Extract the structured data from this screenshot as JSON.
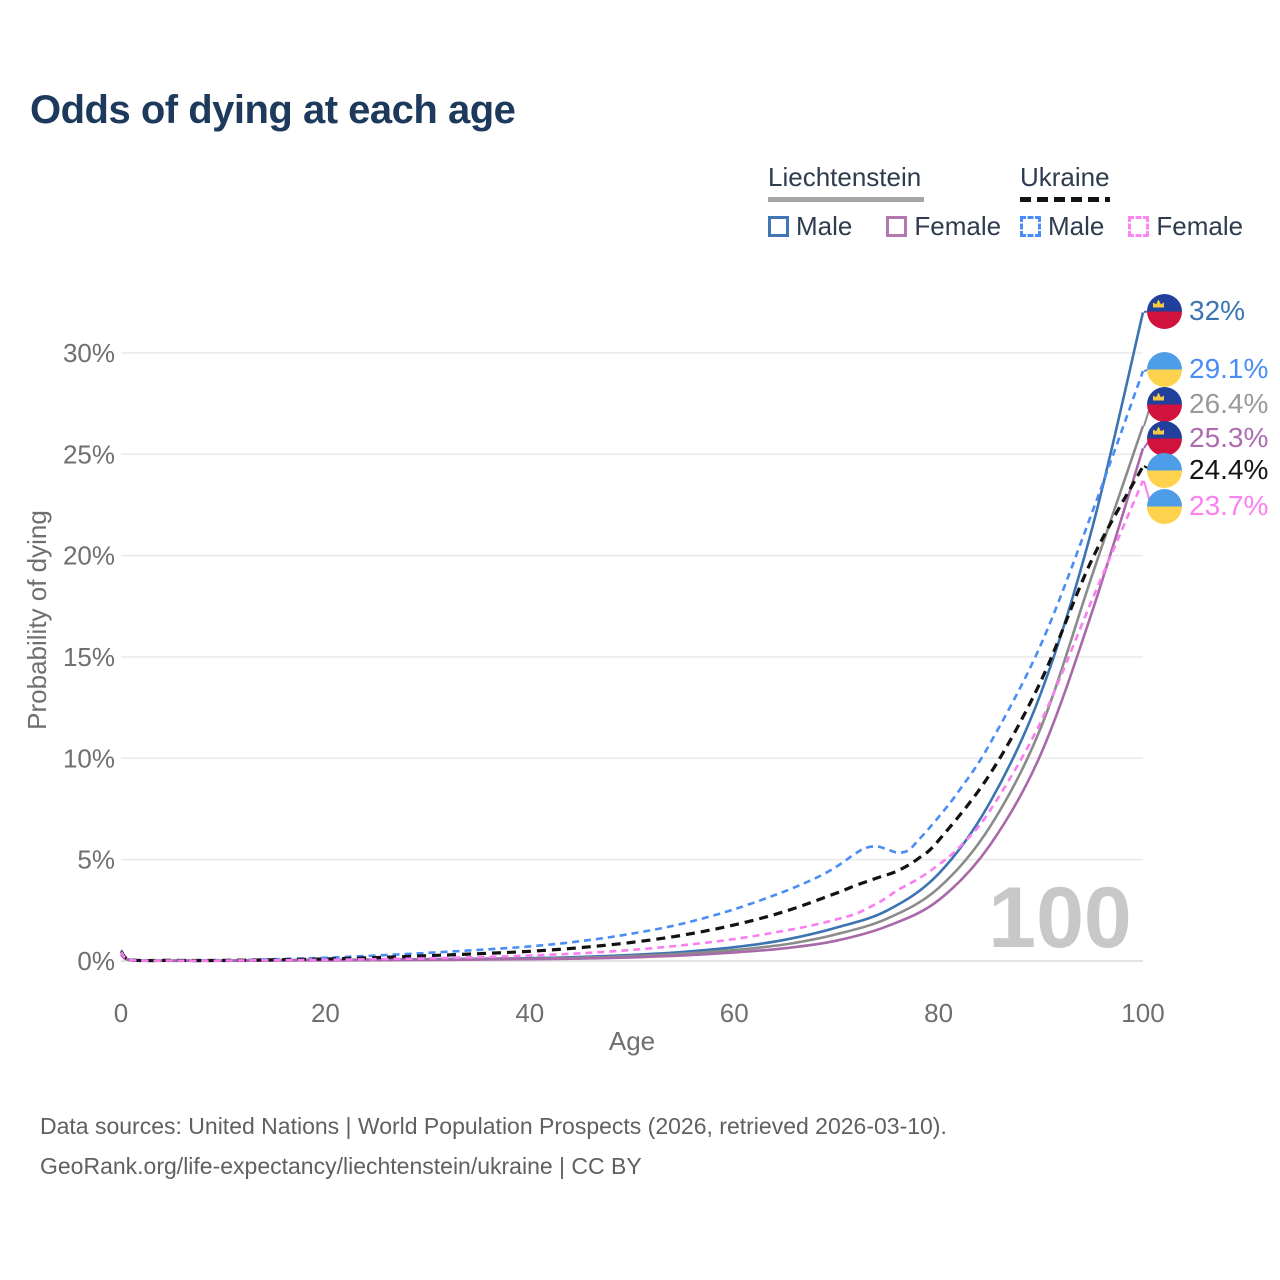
{
  "header": {
    "title": "Odds of dying at each age"
  },
  "legend": {
    "groups": [
      {
        "name": "Liechtenstein",
        "line_style": "solid",
        "underline_color": "#a6a6a6",
        "items": [
          {
            "label": "Male",
            "color": "#4076b4"
          },
          {
            "label": "Female",
            "color": "#b277ae"
          }
        ]
      },
      {
        "name": "Ukraine",
        "line_style": "dashed",
        "underline_color": "#141414",
        "items": [
          {
            "label": "Male",
            "color": "#4a8df5"
          },
          {
            "label": "Female",
            "color": "#fc87f2"
          }
        ]
      }
    ]
  },
  "chart_data": {
    "type": "line",
    "title": "Odds of dying at each age",
    "xlabel": "Age",
    "ylabel": "Probability of dying",
    "xlim": [
      0,
      100
    ],
    "ylim": [
      0,
      32
    ],
    "x_ticks": [
      0,
      20,
      40,
      60,
      80,
      100
    ],
    "y_ticks": [
      "0%",
      "5%",
      "10%",
      "15%",
      "20%",
      "25%",
      "30%"
    ],
    "grid": "horizontal-only",
    "legend_position": "top-right",
    "watermark": "100",
    "series": [
      {
        "name": "Liechtenstein — Male",
        "color": "#3c74b2",
        "dash": null,
        "width": 2.6,
        "end_label": "32%",
        "points": [
          [
            0,
            0.38
          ],
          [
            1,
            0.04
          ],
          [
            5,
            0.02
          ],
          [
            10,
            0.02
          ],
          [
            15,
            0.04
          ],
          [
            20,
            0.06
          ],
          [
            25,
            0.07
          ],
          [
            30,
            0.09
          ],
          [
            35,
            0.11
          ],
          [
            40,
            0.14
          ],
          [
            45,
            0.2
          ],
          [
            50,
            0.3
          ],
          [
            55,
            0.45
          ],
          [
            60,
            0.68
          ],
          [
            65,
            1.05
          ],
          [
            70,
            1.65
          ],
          [
            75,
            2.5
          ],
          [
            80,
            4.3
          ],
          [
            85,
            7.8
          ],
          [
            90,
            13.2
          ],
          [
            95,
            21.3
          ],
          [
            100,
            32
          ]
        ]
      },
      {
        "name": "Ukraine — Male",
        "color": "#4a8df5",
        "dash": "7 5",
        "width": 2.6,
        "end_label": "29.1%",
        "points": [
          [
            0,
            0.52
          ],
          [
            1,
            0.06
          ],
          [
            5,
            0.04
          ],
          [
            10,
            0.04
          ],
          [
            15,
            0.09
          ],
          [
            20,
            0.16
          ],
          [
            25,
            0.27
          ],
          [
            30,
            0.4
          ],
          [
            35,
            0.55
          ],
          [
            40,
            0.72
          ],
          [
            45,
            0.98
          ],
          [
            50,
            1.35
          ],
          [
            55,
            1.85
          ],
          [
            60,
            2.55
          ],
          [
            65,
            3.45
          ],
          [
            68,
            4.1
          ],
          [
            70,
            4.65
          ],
          [
            72,
            5.35
          ],
          [
            73,
            5.6
          ],
          [
            74,
            5.65
          ],
          [
            75,
            5.5
          ],
          [
            76,
            5.35
          ],
          [
            77,
            5.45
          ],
          [
            78,
            5.95
          ],
          [
            80,
            7.1
          ],
          [
            82,
            8.4
          ],
          [
            85,
            10.7
          ],
          [
            90,
            15.6
          ],
          [
            95,
            22.1
          ],
          [
            100,
            29.1
          ]
        ]
      },
      {
        "name": "Liechtenstein — Both sexes",
        "color": "#8b8b8b",
        "dash": null,
        "width": 2.6,
        "end_label": "26.4%",
        "points": [
          [
            0,
            0.34
          ],
          [
            1,
            0.035
          ],
          [
            5,
            0.015
          ],
          [
            10,
            0.015
          ],
          [
            15,
            0.03
          ],
          [
            20,
            0.05
          ],
          [
            25,
            0.06
          ],
          [
            30,
            0.07
          ],
          [
            35,
            0.09
          ],
          [
            40,
            0.11
          ],
          [
            45,
            0.16
          ],
          [
            50,
            0.24
          ],
          [
            55,
            0.36
          ],
          [
            60,
            0.54
          ],
          [
            65,
            0.82
          ],
          [
            70,
            1.32
          ],
          [
            75,
            2.1
          ],
          [
            80,
            3.6
          ],
          [
            85,
            6.6
          ],
          [
            90,
            11.5
          ],
          [
            95,
            19.0
          ],
          [
            100,
            26.4
          ]
        ]
      },
      {
        "name": "Liechtenstein — Female",
        "color": "#a869a9",
        "dash": null,
        "width": 2.6,
        "end_label": "25.3%",
        "points": [
          [
            0,
            0.3
          ],
          [
            1,
            0.03
          ],
          [
            5,
            0.01
          ],
          [
            10,
            0.01
          ],
          [
            15,
            0.02
          ],
          [
            20,
            0.03
          ],
          [
            25,
            0.04
          ],
          [
            30,
            0.05
          ],
          [
            35,
            0.07
          ],
          [
            40,
            0.09
          ],
          [
            45,
            0.12
          ],
          [
            50,
            0.18
          ],
          [
            55,
            0.27
          ],
          [
            60,
            0.42
          ],
          [
            65,
            0.63
          ],
          [
            70,
            1.0
          ],
          [
            75,
            1.72
          ],
          [
            80,
            3.0
          ],
          [
            85,
            5.7
          ],
          [
            90,
            10.2
          ],
          [
            95,
            17.2
          ],
          [
            100,
            25.3
          ]
        ]
      },
      {
        "name": "Ukraine — Both sexes",
        "color": "#121212",
        "dash": "9 6",
        "width": 3.2,
        "end_label": "24.4%",
        "points": [
          [
            0,
            0.48
          ],
          [
            1,
            0.05
          ],
          [
            5,
            0.03
          ],
          [
            10,
            0.03
          ],
          [
            15,
            0.06
          ],
          [
            20,
            0.1
          ],
          [
            25,
            0.17
          ],
          [
            30,
            0.26
          ],
          [
            35,
            0.36
          ],
          [
            40,
            0.48
          ],
          [
            45,
            0.66
          ],
          [
            50,
            0.92
          ],
          [
            55,
            1.28
          ],
          [
            60,
            1.78
          ],
          [
            65,
            2.45
          ],
          [
            70,
            3.35
          ],
          [
            72,
            3.75
          ],
          [
            74,
            4.1
          ],
          [
            76,
            4.45
          ],
          [
            78,
            5.05
          ],
          [
            80,
            5.95
          ],
          [
            85,
            9.2
          ],
          [
            90,
            13.8
          ],
          [
            95,
            19.8
          ],
          [
            100,
            24.4
          ]
        ]
      },
      {
        "name": "Ukraine — Female",
        "color": "#fa7ef0",
        "dash": "7 5",
        "width": 2.6,
        "end_label": "23.7%",
        "points": [
          [
            0,
            0.44
          ],
          [
            1,
            0.04
          ],
          [
            5,
            0.02
          ],
          [
            10,
            0.02
          ],
          [
            15,
            0.04
          ],
          [
            20,
            0.06
          ],
          [
            25,
            0.09
          ],
          [
            30,
            0.13
          ],
          [
            35,
            0.19
          ],
          [
            40,
            0.27
          ],
          [
            45,
            0.38
          ],
          [
            50,
            0.55
          ],
          [
            55,
            0.78
          ],
          [
            60,
            1.08
          ],
          [
            65,
            1.5
          ],
          [
            68,
            1.8
          ],
          [
            70,
            2.05
          ],
          [
            72,
            2.35
          ],
          [
            74,
            2.85
          ],
          [
            75,
            3.15
          ],
          [
            76,
            3.5
          ],
          [
            78,
            4.05
          ],
          [
            80,
            4.75
          ],
          [
            82,
            5.6
          ],
          [
            85,
            7.4
          ],
          [
            90,
            11.8
          ],
          [
            95,
            17.8
          ],
          [
            100,
            23.7
          ]
        ]
      }
    ]
  },
  "end_labels": [
    {
      "flag": "liechtenstein",
      "value": "32%",
      "color": "#3c74b2"
    },
    {
      "flag": "ukraine",
      "value": "29.1%",
      "color": "#4a8df5"
    },
    {
      "flag": "liechtenstein",
      "value": "26.4%",
      "color": "#9a9a9a"
    },
    {
      "flag": "liechtenstein",
      "value": "25.3%",
      "color": "#ad6cb0"
    },
    {
      "flag": "ukraine",
      "value": "24.4%",
      "color": "#141414"
    },
    {
      "flag": "ukraine",
      "value": "23.7%",
      "color": "#fb80f0"
    }
  ],
  "footer": {
    "line1": "Data sources: United Nations | World Population Prospects (2026, retrieved 2026-03-10).",
    "line2": "GeoRank.org/life-expectancy/liechtenstein/ukraine | CC BY"
  }
}
